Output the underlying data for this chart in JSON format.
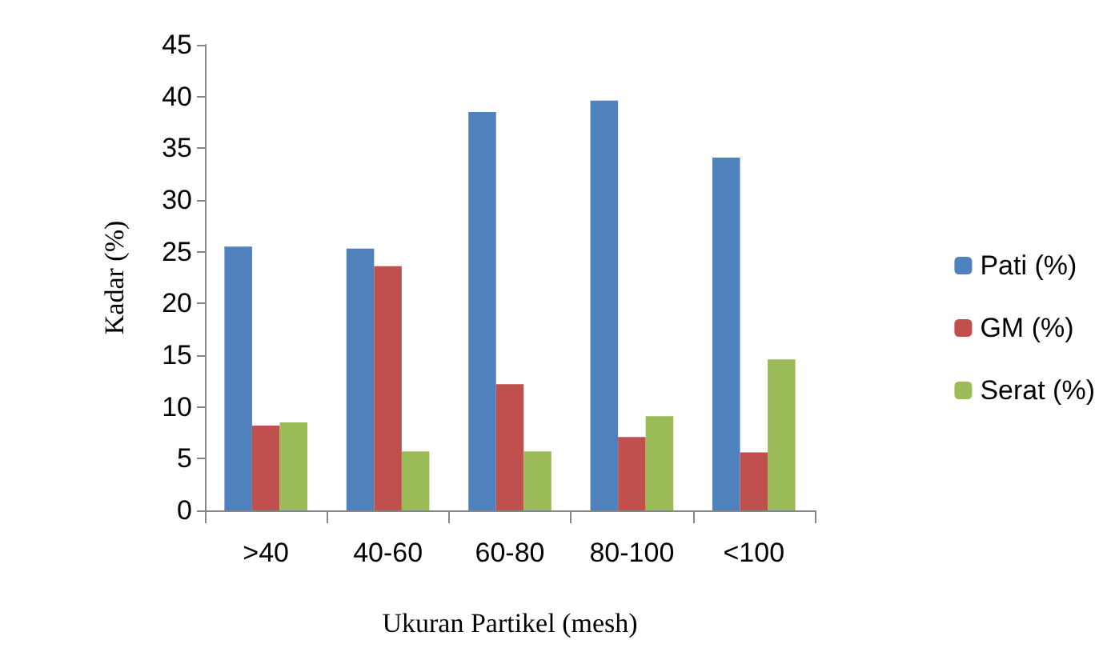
{
  "chart_data": {
    "type": "bar",
    "xlabel": "Ukuran Partikel (mesh)",
    "ylabel": "Kadar (%)",
    "categories": [
      ">40",
      "40-60",
      "60-80",
      "80-100",
      "<100"
    ],
    "series": [
      {
        "name": "Pati (%)",
        "color": "#4f81bd",
        "values": [
          25.5,
          25.3,
          38.5,
          39.6,
          34.1
        ]
      },
      {
        "name": "GM (%)",
        "color": "#c0504d",
        "values": [
          8.2,
          23.6,
          12.2,
          7.1,
          5.6
        ]
      },
      {
        "name": "Serat (%)",
        "color": "#9bbb59",
        "values": [
          8.5,
          5.7,
          5.7,
          9.1,
          14.6
        ]
      }
    ],
    "ylim": [
      0,
      45
    ],
    "yticks": [
      0,
      5,
      10,
      15,
      20,
      25,
      30,
      35,
      40,
      45
    ],
    "grid": false,
    "legend": "right"
  }
}
